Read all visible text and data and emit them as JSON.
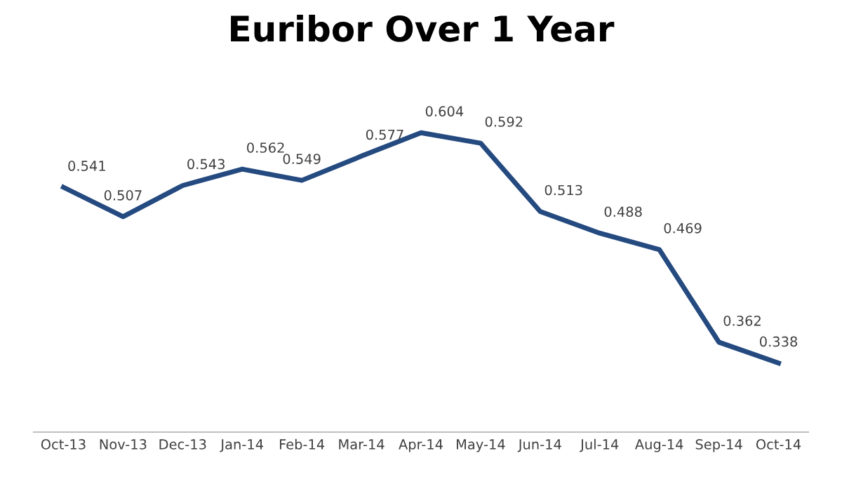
{
  "chart_data": {
    "type": "line",
    "title": "Euribor Over 1 Year",
    "categories": [
      "Oct-13",
      "Nov-13",
      "Dec-13",
      "Jan-14",
      "Feb-14",
      "Mar-14",
      "Apr-14",
      "May-14",
      "Jun-14",
      "Jul-14",
      "Aug-14",
      "Sep-14",
      "Oct-14"
    ],
    "series": [
      {
        "color": "#244a80",
        "values": [
          0.541,
          0.507,
          0.543,
          0.562,
          0.549,
          0.577,
          0.604,
          0.592,
          0.513,
          0.488,
          0.469,
          0.362,
          0.338
        ]
      }
    ],
    "data_labels": true,
    "grid": false,
    "legend": false,
    "marker": "none",
    "line_style": "solid"
  }
}
